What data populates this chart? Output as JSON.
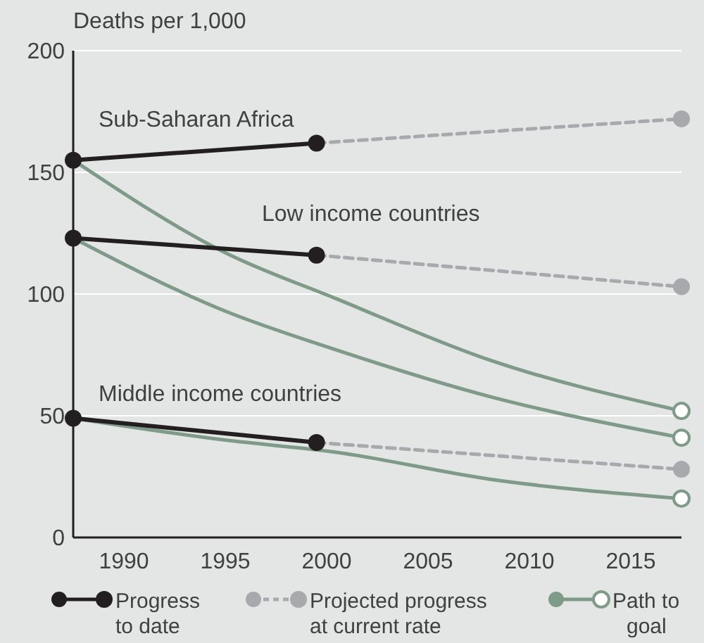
{
  "chart_data": {
    "type": "line",
    "ylabel": "Deaths per 1,000",
    "xlim": [
      1987.5,
      2017.5
    ],
    "xticks": [
      1990,
      1995,
      2000,
      2005,
      2010,
      2015
    ],
    "ylim": [
      0,
      200
    ],
    "yticks": [
      0,
      50,
      100,
      150,
      200
    ],
    "grid": "y",
    "legend": "bottom",
    "series": [
      {
        "name": "Progress\nto date",
        "color": "#231f20",
        "line_style": "solid",
        "marker": "circle",
        "x": [
          1987.5,
          1999.5
        ],
        "values": [
          155,
          162
        ]
      },
      {
        "color": "#231f20",
        "line_style": "solid",
        "marker": "circle",
        "x": [
          1987.5,
          1999.5
        ],
        "values": [
          123,
          116
        ]
      },
      {
        "color": "#231f20",
        "line_style": "solid",
        "marker": "circle",
        "x": [
          1987.5,
          1999.5
        ],
        "values": [
          49,
          39
        ]
      },
      {
        "name": "Projected progress\nat current rate",
        "color": "#a7a9ac",
        "line_style": "dashed",
        "marker": "circle",
        "x": [
          1999.5,
          2017.5
        ],
        "values": [
          162,
          172
        ]
      },
      {
        "color": "#a7a9ac",
        "line_style": "dashed",
        "marker": "circle",
        "x": [
          1999.5,
          2017.5
        ],
        "values": [
          116,
          103
        ]
      },
      {
        "color": "#a7a9ac",
        "line_style": "dashed",
        "marker": "circle",
        "x": [
          1999.5,
          2017.5
        ],
        "values": [
          39,
          28
        ]
      },
      {
        "name": "Path to\ngoal",
        "color": "#7f9a88",
        "line_style": "solid",
        "marker": "none",
        "x": [
          1987.5,
          1995,
          2000.5,
          2008,
          2017.5
        ],
        "values": [
          155,
          117,
          98,
          73,
          52
        ]
      },
      {
        "color": "#7f9a88",
        "line_style": "solid",
        "marker": "none",
        "x": [
          1987.5,
          1995,
          2000.5,
          2008,
          2017.5
        ],
        "values": [
          123,
          93,
          77,
          58,
          41
        ]
      },
      {
        "color": "#7f9a88",
        "line_style": "solid",
        "marker": "none",
        "x": [
          1987.5,
          1995,
          2000.5,
          2008,
          2017.5
        ],
        "values": [
          49,
          40,
          35,
          24,
          16
        ]
      },
      {
        "type": "scatter",
        "color": "#7f9a88",
        "marker": "circle",
        "x": [
          2017.5,
          2017.5,
          2017.5
        ],
        "values": [
          52,
          41,
          16
        ]
      }
    ],
    "annotations": [
      "Sub-Saharan Africa",
      "Low income countries",
      "Middle income countries"
    ]
  }
}
